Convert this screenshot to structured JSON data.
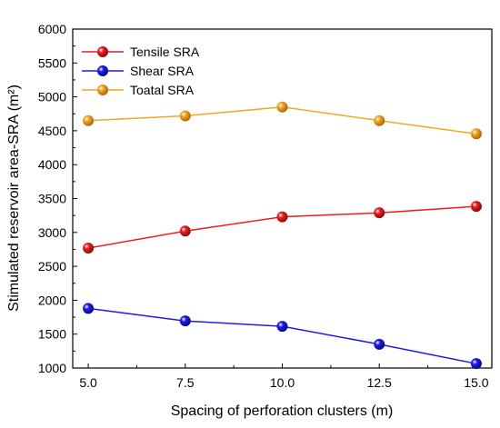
{
  "chart_data": {
    "type": "line",
    "title": "",
    "xlabel": "Spacing of perforation clusters (m)",
    "ylabel": "Stimulated reservoir area-SRA (m²)",
    "x": [
      5.0,
      7.5,
      10.0,
      12.5,
      15.0
    ],
    "x_tick_labels": [
      "5.0",
      "7.5",
      "10.0",
      "12.5",
      "15.0"
    ],
    "xlim": [
      4.6,
      15.4
    ],
    "ylim": [
      1000,
      6000
    ],
    "y_ticks": [
      1000,
      1500,
      2000,
      2500,
      3000,
      3500,
      4000,
      4500,
      5000,
      5500,
      6000
    ],
    "y_tick_labels": [
      "1000",
      "1500",
      "2000",
      "2500",
      "3000",
      "3500",
      "4000",
      "4500",
      "5000",
      "5500",
      "6000"
    ],
    "grid": false,
    "legend_position": "top-left",
    "series": [
      {
        "name": "Tensile SRA",
        "color": "#ee1c1c",
        "values": [
          2770,
          3020,
          3230,
          3290,
          3385
        ]
      },
      {
        "name": "Shear SRA",
        "color": "#1c1cee",
        "values": [
          1880,
          1695,
          1615,
          1350,
          1065
        ]
      },
      {
        "name": "Toatal SRA",
        "color": "#f5a623",
        "values": [
          4650,
          4720,
          4850,
          4650,
          4455
        ]
      }
    ]
  }
}
